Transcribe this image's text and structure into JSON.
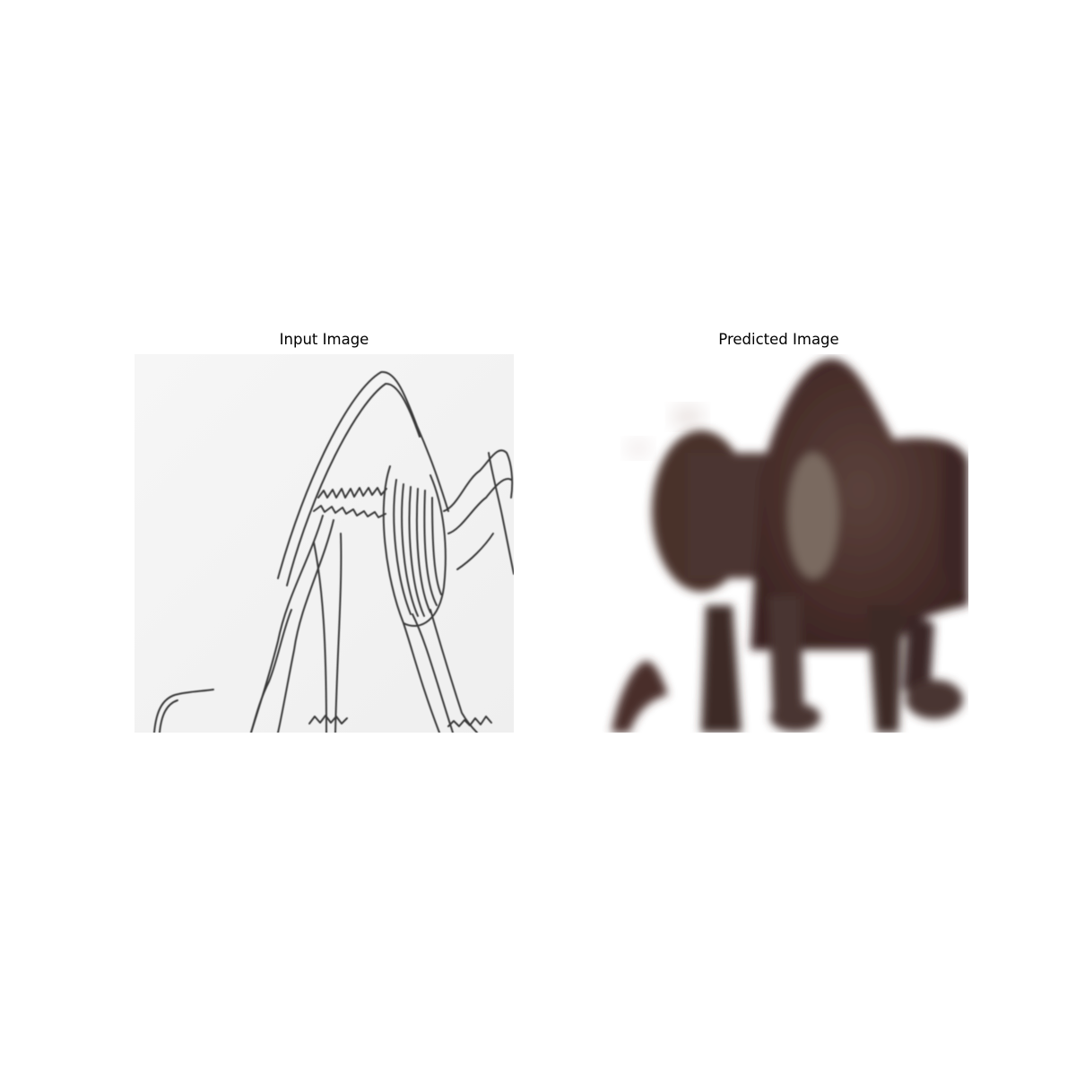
{
  "figure": {
    "panels": [
      {
        "title": "Input Image",
        "content": "pencil sketch of an animal skeleton"
      },
      {
        "title": "Predicted Image",
        "content": "dark brown blurry animal shape"
      }
    ]
  },
  "colors": {
    "background": "#ffffff",
    "sketch_paper": "#f4f4f4",
    "sketch_line": "#3a3a3a",
    "predicted_fur": "#4a302c",
    "predicted_fur_dark": "#3a2422",
    "predicted_highlight": "#7a6a60"
  }
}
